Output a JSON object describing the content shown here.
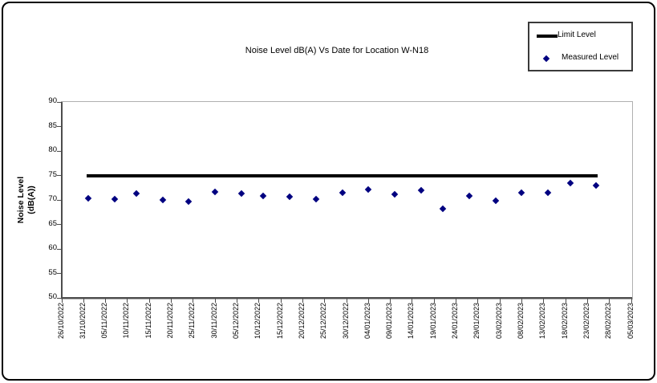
{
  "chart_data": {
    "type": "scatter",
    "title": "Noise Level dB(A) Vs Date for Location W-N18",
    "ylabel": "Noise Level (dB(A))",
    "ylabel_lines": [
      "Noise Level",
      "(dB(A))"
    ],
    "xlabel": "",
    "ylim": [
      50,
      90
    ],
    "ytick_step": 5,
    "ytick_labels": [
      "90",
      "85",
      "80",
      "75",
      "70",
      "65",
      "60",
      "55",
      "50"
    ],
    "x_tick_labels": [
      "26/10/2022",
      "31/10/2022",
      "05/11/2022",
      "10/11/2022",
      "15/11/2022",
      "20/11/2022",
      "25/11/2022",
      "30/11/2022",
      "05/12/2022",
      "10/12/2022",
      "15/12/2022",
      "20/12/2022",
      "25/12/2022",
      "30/12/2022",
      "04/01/2023",
      "09/01/2023",
      "14/01/2023",
      "19/01/2023",
      "24/01/2023",
      "29/01/2023",
      "03/02/2023",
      "08/02/2023",
      "13/02/2023",
      "18/02/2023",
      "23/02/2023",
      "28/02/2023",
      "05/03/2023"
    ],
    "x_tick_interval_days": 5,
    "x_total_days": 130,
    "grid": false,
    "legend_position": "top-right",
    "colors": {
      "limit": "#000000",
      "measured": "#000080"
    },
    "series": [
      {
        "name": "Limit Level",
        "type": "line",
        "color": "#000000",
        "value": 75,
        "x_start_day": 6,
        "x_end_day": 122
      },
      {
        "name": "Measured Level",
        "type": "scatter",
        "marker": "diamond",
        "color": "#000080",
        "points": [
          {
            "date": "01/11/2022",
            "day": 6,
            "value": 70.3
          },
          {
            "date": "07/11/2022",
            "day": 12,
            "value": 70.1
          },
          {
            "date": "12/11/2022",
            "day": 17,
            "value": 71.3
          },
          {
            "date": "18/11/2022",
            "day": 23,
            "value": 70.0
          },
          {
            "date": "24/11/2022",
            "day": 29,
            "value": 69.7
          },
          {
            "date": "30/11/2022",
            "day": 35,
            "value": 71.6
          },
          {
            "date": "06/12/2022",
            "day": 41,
            "value": 71.3
          },
          {
            "date": "11/12/2022",
            "day": 46,
            "value": 70.9
          },
          {
            "date": "17/12/2022",
            "day": 52,
            "value": 70.7
          },
          {
            "date": "23/12/2022",
            "day": 58,
            "value": 70.2
          },
          {
            "date": "29/12/2022",
            "day": 64,
            "value": 71.5
          },
          {
            "date": "04/01/2023",
            "day": 70,
            "value": 72.1
          },
          {
            "date": "10/01/2023",
            "day": 76,
            "value": 71.1
          },
          {
            "date": "16/01/2023",
            "day": 82,
            "value": 72.0
          },
          {
            "date": "21/01/2023",
            "day": 87,
            "value": 68.2
          },
          {
            "date": "27/01/2023",
            "day": 93,
            "value": 70.9
          },
          {
            "date": "02/02/2023",
            "day": 99,
            "value": 69.8
          },
          {
            "date": "08/02/2023",
            "day": 105,
            "value": 71.4
          },
          {
            "date": "14/02/2023",
            "day": 111,
            "value": 71.5
          },
          {
            "date": "19/02/2023",
            "day": 116,
            "value": 73.4
          },
          {
            "date": "25/02/2023",
            "day": 122,
            "value": 72.9
          }
        ]
      }
    ]
  }
}
